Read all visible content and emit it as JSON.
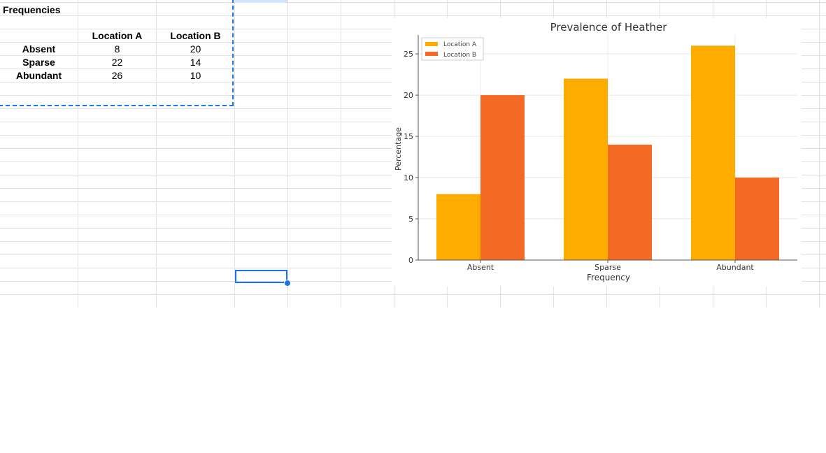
{
  "sheet": {
    "a1": "Frequencies",
    "headers": [
      "Location A",
      "Location B"
    ],
    "rows": [
      {
        "label": "Absent",
        "a": "8",
        "b": "20"
      },
      {
        "label": "Sparse",
        "a": "22",
        "b": "14"
      },
      {
        "label": "Abundant",
        "a": "26",
        "b": "10"
      }
    ]
  },
  "colors": {
    "location_a": "#FFAC00",
    "location_b": "#F46A25",
    "selection": "#1a73e8"
  },
  "chart_data": {
    "type": "bar",
    "title": "Prevalence of Heather",
    "xlabel": "Frequency",
    "ylabel": "Percentage",
    "categories": [
      "Absent",
      "Sparse",
      "Abundant"
    ],
    "series": [
      {
        "name": "Location A",
        "values": [
          8,
          22,
          26
        ]
      },
      {
        "name": "Location B",
        "values": [
          20,
          14,
          10
        ]
      }
    ],
    "ylim": [
      0,
      27.3
    ],
    "yticks": [
      0,
      5,
      10,
      15,
      20,
      25
    ],
    "legend": "top-left",
    "grid": true
  }
}
